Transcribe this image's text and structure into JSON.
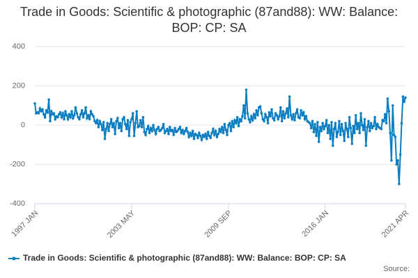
{
  "chart_data": {
    "type": "line",
    "title": "Trade in Goods: Scientific & photographic (87and88): WW: Balance: BOP: CP: SA",
    "source_label": "Source:",
    "categories": [
      "1997 JAN",
      null,
      null,
      null,
      null,
      null,
      null,
      null,
      null,
      null,
      null,
      null,
      null,
      null,
      null,
      null,
      null,
      null,
      null,
      null,
      null,
      null,
      null,
      null,
      null,
      null,
      null,
      null,
      null,
      null,
      null,
      null,
      null,
      null,
      null,
      null,
      null,
      null,
      null,
      null,
      null,
      null,
      null,
      null,
      null,
      null,
      null,
      null,
      null,
      null,
      null,
      null,
      null,
      null,
      null,
      null,
      null,
      null,
      null,
      null,
      null,
      null,
      null,
      null,
      null,
      null,
      null,
      null,
      null,
      null,
      null,
      null,
      null,
      null,
      null,
      null,
      "2003 MAY",
      null,
      null,
      null,
      null,
      null,
      null,
      null,
      null,
      null,
      null,
      null,
      null,
      null,
      null,
      null,
      null,
      null,
      null,
      null,
      null,
      null,
      null,
      null,
      null,
      null,
      null,
      null,
      null,
      null,
      null,
      null,
      null,
      null,
      null,
      null,
      null,
      null,
      null,
      null,
      null,
      null,
      null,
      null,
      null,
      null,
      null,
      null,
      null,
      null,
      null,
      null,
      null,
      null,
      null,
      null,
      null,
      null,
      null,
      null,
      null,
      null,
      null,
      null,
      null,
      null,
      null,
      null,
      null,
      null,
      null,
      null,
      null,
      null,
      null,
      null,
      "2009 SEP",
      null,
      null,
      null,
      null,
      null,
      null,
      null,
      null,
      null,
      null,
      null,
      null,
      null,
      null,
      null,
      null,
      null,
      null,
      null,
      null,
      null,
      null,
      null,
      null,
      null,
      null,
      null,
      null,
      null,
      null,
      null,
      null,
      null,
      null,
      null,
      null,
      null,
      null,
      null,
      null,
      null,
      null,
      null,
      null,
      null,
      null,
      null,
      null,
      null,
      null,
      null,
      null,
      null,
      null,
      null,
      null,
      null,
      null,
      null,
      null,
      null,
      null,
      null,
      null,
      null,
      null,
      null,
      null,
      null,
      null,
      null,
      null,
      null,
      null,
      null,
      "2016 JAN",
      null,
      null,
      null,
      null,
      null,
      null,
      null,
      null,
      null,
      null,
      null,
      null,
      null,
      null,
      null,
      null,
      null,
      null,
      null,
      null,
      null,
      null,
      null,
      null,
      null,
      null,
      null,
      null,
      null,
      null,
      null,
      null,
      null,
      null,
      null,
      null,
      null,
      null,
      null,
      null,
      null,
      null,
      null,
      null,
      null,
      null,
      null,
      null,
      null,
      null,
      null,
      null,
      null,
      null,
      null,
      null,
      null,
      null,
      null,
      null,
      null,
      null,
      "2021 APR"
    ],
    "series": [
      {
        "name": "Trade in Goods: Scientific & photographic (87and88): WW: Balance: BOP: CP: SA",
        "color": "#0b7dc1",
        "values": [
          110,
          60,
          65,
          60,
          85,
          70,
          80,
          55,
          40,
          75,
          65,
          130,
          20,
          70,
          55,
          60,
          30,
          45,
          40,
          55,
          65,
          40,
          60,
          30,
          70,
          50,
          30,
          55,
          40,
          70,
          35,
          50,
          90,
          60,
          40,
          30,
          55,
          75,
          40,
          60,
          90,
          35,
          50,
          30,
          70,
          55,
          45,
          20,
          10,
          25,
          -10,
          20,
          5,
          -25,
          15,
          -70,
          -20,
          10,
          -30,
          5,
          30,
          -10,
          10,
          -45,
          20,
          35,
          -15,
          10,
          -30,
          30,
          40,
          5,
          -20,
          25,
          -55,
          15,
          30,
          60,
          -55,
          10,
          70,
          -10,
          -5,
          25,
          -10,
          40,
          -35,
          -50,
          -20,
          -5,
          -40,
          -15,
          -30,
          0,
          -25,
          -45,
          -20,
          -10,
          -30,
          -25,
          -15,
          5,
          -40,
          -30,
          -20,
          -45,
          -10,
          -30,
          -25,
          -50,
          -15,
          -35,
          -30,
          -20,
          -10,
          -40,
          -25,
          -45,
          -30,
          -15,
          -35,
          -60,
          -40,
          -55,
          -30,
          -70,
          -45,
          -50,
          -65,
          -40,
          -55,
          -75,
          -50,
          -60,
          -45,
          -70,
          -35,
          -55,
          -65,
          -40,
          -20,
          -50,
          -30,
          -60,
          -45,
          -20,
          -35,
          -10,
          -40,
          5,
          -25,
          -50,
          0,
          10,
          -30,
          20,
          -10,
          25,
          10,
          40,
          -5,
          30,
          20,
          45,
          100,
          35,
          180,
          60,
          30,
          15,
          45,
          25,
          55,
          35,
          75,
          50,
          90,
          95,
          60,
          30,
          20,
          55,
          40,
          10,
          65,
          45,
          80,
          35,
          25,
          60,
          50,
          30,
          45,
          90,
          20,
          70,
          35,
          60,
          85,
          40,
          145,
          50,
          30,
          55,
          25,
          60,
          80,
          40,
          35,
          75,
          50,
          65,
          30,
          45,
          20,
          15,
          10,
          -15,
          20,
          -35,
          5,
          -55,
          15,
          -85,
          -10,
          -30,
          10,
          -20,
          -5,
          25,
          -40,
          0,
          -70,
          15,
          -105,
          -20,
          10,
          -60,
          -35,
          20,
          -50,
          5,
          -30,
          -80,
          10,
          -20,
          -60,
          40,
          -15,
          -95,
          -5,
          -40,
          50,
          -20,
          10,
          -40,
          60,
          0,
          -25,
          30,
          -105,
          -10,
          20,
          -30,
          10,
          -15,
          -5,
          40,
          -20,
          5,
          -10,
          -15,
          -20,
          25,
          20,
          55,
          10,
          135,
          70,
          -40,
          -180,
          100,
          -50,
          -60,
          -200,
          -180,
          -300,
          -150,
          10,
          145,
          120,
          140
        ]
      }
    ],
    "ylim": [
      -400,
      400
    ],
    "yticks": [
      -400,
      -200,
      0,
      200,
      400
    ],
    "grid": true
  }
}
